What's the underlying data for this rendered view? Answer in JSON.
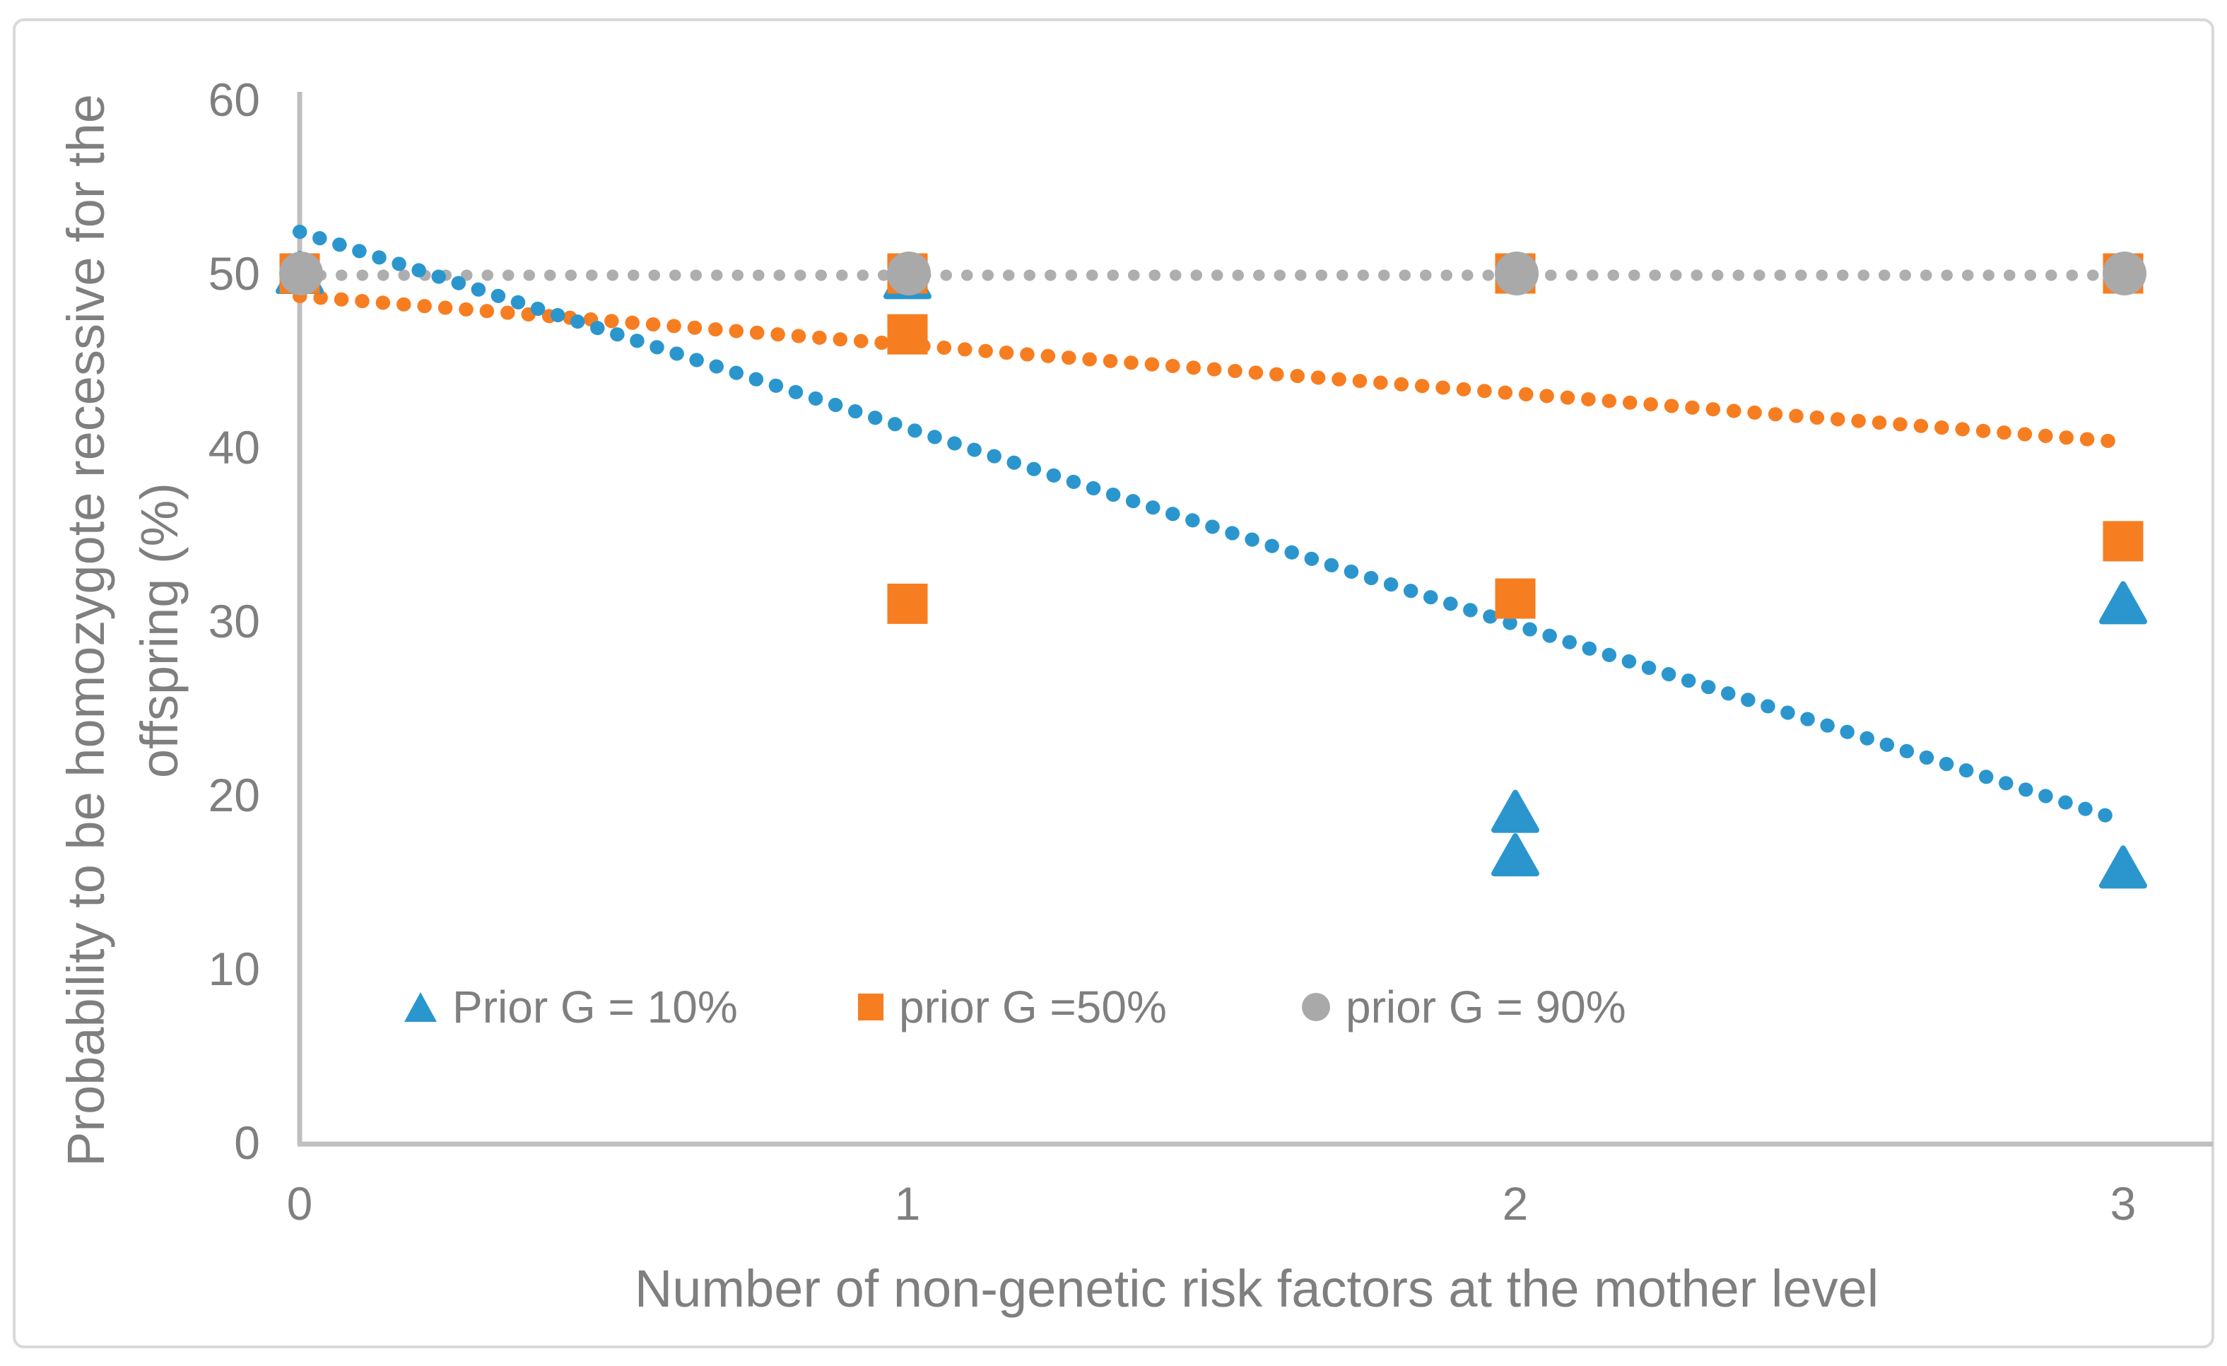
{
  "chart_data": {
    "type": "scatter",
    "title": "",
    "xlabel": "Number of non-genetic risk factors at the mother level",
    "ylabel": "Probability to be homozygote recessive for the offspring (%)",
    "xlim": [
      0,
      3
    ],
    "ylim": [
      0,
      60
    ],
    "x_ticks": [
      0,
      1,
      2,
      3
    ],
    "y_ticks": [
      0,
      10,
      20,
      30,
      40,
      50,
      60
    ],
    "grid": "off",
    "legend_position": "inside-bottom-left",
    "series": [
      {
        "name": "Prior G = 10%",
        "marker": "triangle",
        "color": "#2b96ce",
        "points": [
          [
            0,
            50
          ],
          [
            1,
            49.7
          ],
          [
            2,
            19
          ],
          [
            2,
            16.5
          ],
          [
            3,
            31
          ],
          [
            3,
            15.8
          ]
        ],
        "trendline": {
          "style": "dotted",
          "x": [
            0,
            3
          ],
          "y": [
            52.4,
            18.5
          ]
        }
      },
      {
        "name": "prior G =50%",
        "marker": "square",
        "color": "#f77d21",
        "points": [
          [
            0,
            50
          ],
          [
            1,
            50
          ],
          [
            1,
            46.5
          ],
          [
            1,
            31
          ],
          [
            2,
            50
          ],
          [
            2,
            31.3
          ],
          [
            3,
            50
          ],
          [
            3,
            34.6
          ]
        ],
        "trendline": {
          "style": "dotted",
          "x": [
            0,
            3
          ],
          "y": [
            48.7,
            40.3
          ]
        }
      },
      {
        "name": "prior G = 90%",
        "marker": "circle",
        "color": "#a9a9a9",
        "points": [
          [
            0,
            50
          ],
          [
            1,
            50
          ],
          [
            2,
            50
          ],
          [
            3,
            50
          ]
        ],
        "trendline": {
          "style": "dotted",
          "x": [
            0,
            3.04
          ],
          "y": [
            49.9,
            49.9
          ]
        }
      }
    ]
  },
  "axes": {
    "x_tick_labels": [
      "0",
      "1",
      "2",
      "3"
    ],
    "y_tick_labels": [
      "0",
      "10",
      "20",
      "30",
      "40",
      "50",
      "60"
    ],
    "x_title": "Number of non-genetic risk factors at the mother level",
    "y_title": "Probability to be homozygote recessive for the offspring (%)"
  },
  "legend": {
    "items": [
      {
        "label": "Prior G = 10%",
        "marker": "triangle",
        "color": "#2b96ce"
      },
      {
        "label": "prior G =50%",
        "marker": "square",
        "color": "#f77d21"
      },
      {
        "label": "prior G = 90%",
        "marker": "circle",
        "color": "#a9a9a9"
      }
    ]
  },
  "colors": {
    "blue_series": "#2b96ce",
    "orange_series": "#f77d21",
    "gray_series": "#a9a9a9",
    "gray_trendline": "#aeaeae",
    "axis_line": "#bfbfbf",
    "chart_border": "#d9d9d9",
    "text": "#7f7f7f",
    "background": "#ffffff"
  }
}
